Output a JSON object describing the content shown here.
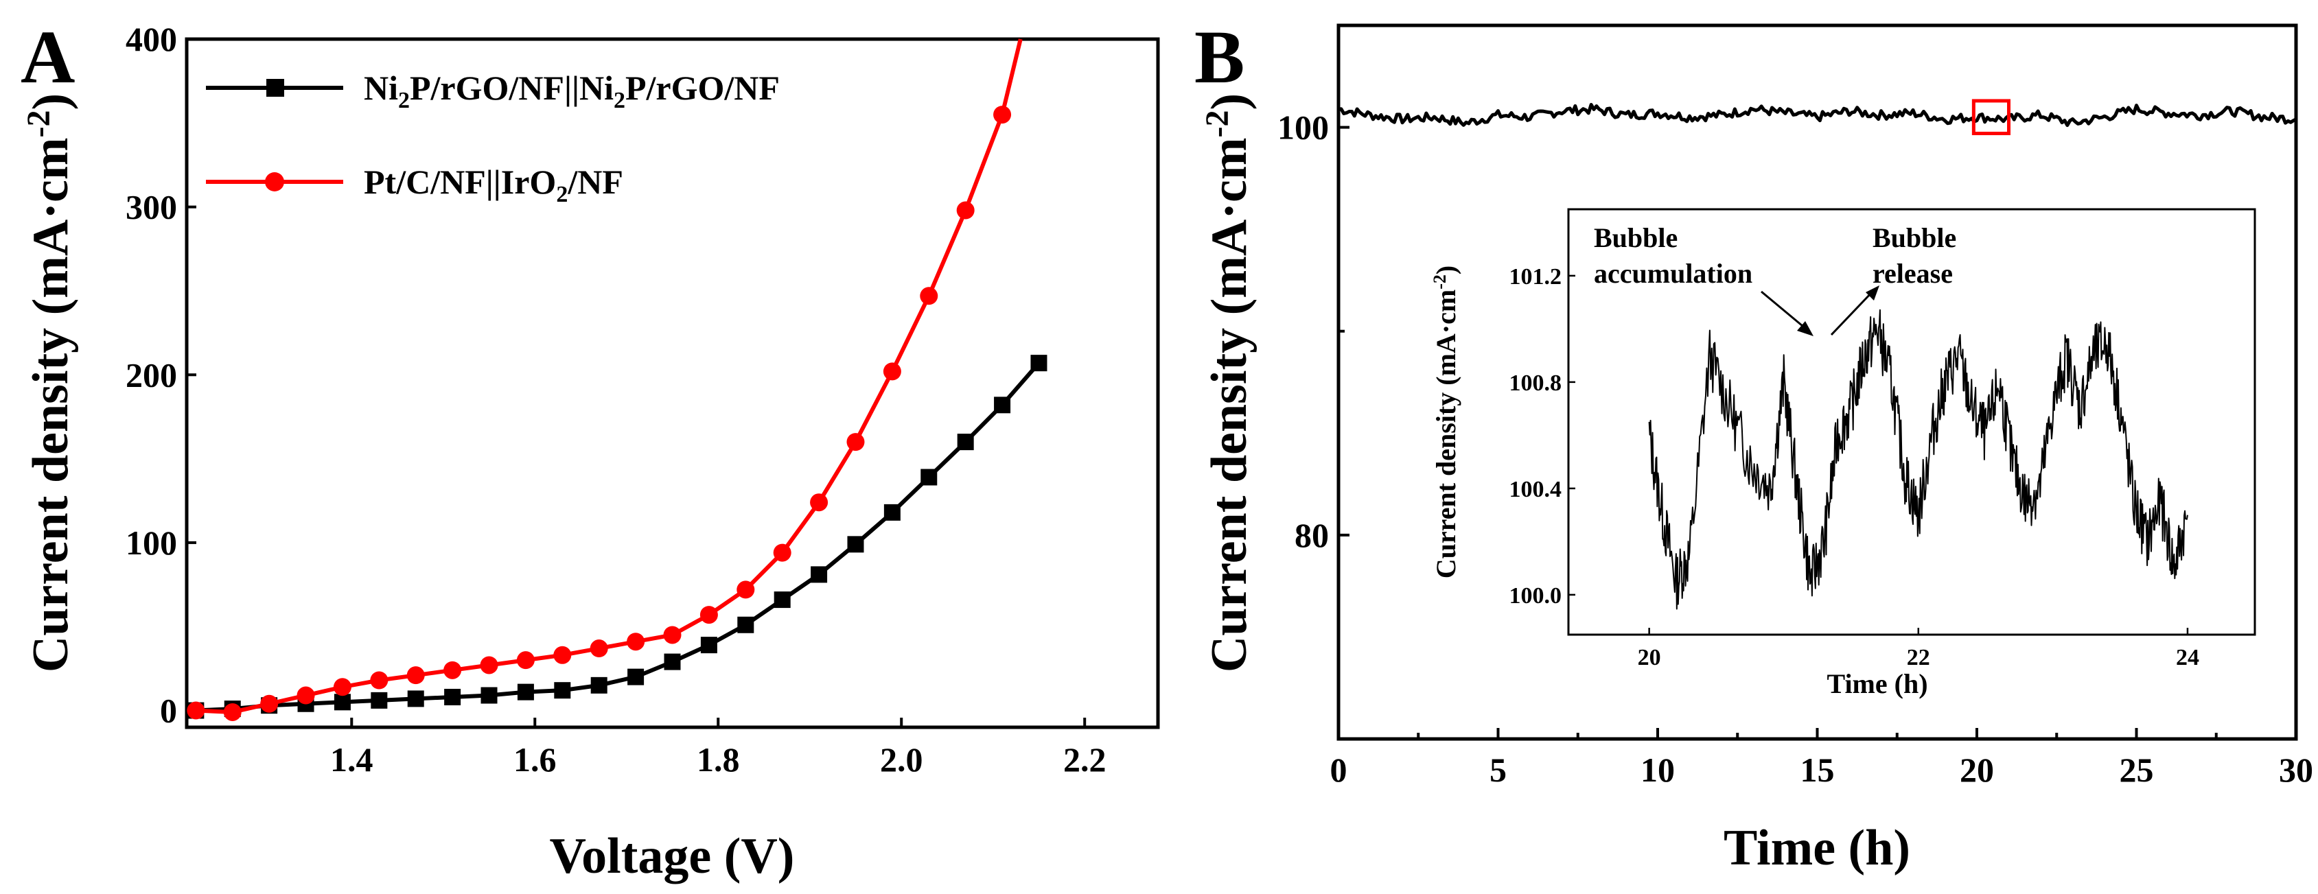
{
  "chart_data": [
    {
      "panel": "A",
      "type": "line",
      "xlabel": "Voltage (V)",
      "ylabel": "Current density (mA·cm⁻²)",
      "xlim": [
        1.22,
        2.28
      ],
      "ylim": [
        -10,
        400
      ],
      "xticks": [
        1.4,
        1.6,
        1.8,
        2.0,
        2.2
      ],
      "xtick_labels": [
        "1.4",
        "1.6",
        "1.8",
        "2.0",
        "2.2"
      ],
      "yticks": [
        0,
        100,
        200,
        300,
        400
      ],
      "ytick_labels": [
        "0",
        "100",
        "200",
        "300",
        "400"
      ],
      "legend": "top-left",
      "series": [
        {
          "name": "Ni2P/rGO/NF||Ni2P/rGO/NF",
          "color": "#000000",
          "marker": "square",
          "x": [
            1.23,
            1.27,
            1.31,
            1.35,
            1.39,
            1.43,
            1.47,
            1.51,
            1.55,
            1.59,
            1.63,
            1.67,
            1.71,
            1.75,
            1.79,
            1.83,
            1.87,
            1.91,
            1.95,
            1.99,
            2.03,
            2.07,
            2.11,
            2.15
          ],
          "y": [
            0,
            1,
            3,
            4,
            5,
            6,
            7,
            8,
            9,
            11,
            12,
            15,
            20,
            29,
            39,
            51,
            66,
            81,
            99,
            118,
            139,
            160,
            182,
            207
          ]
        },
        {
          "name": "Pt/C/NF||IrO2/NF",
          "color": "#ff0000",
          "marker": "circle",
          "x": [
            1.23,
            1.27,
            1.31,
            1.35,
            1.39,
            1.43,
            1.47,
            1.51,
            1.55,
            1.59,
            1.63,
            1.67,
            1.71,
            1.75,
            1.79,
            1.83,
            1.87,
            1.91,
            1.95,
            1.99,
            2.03,
            2.07,
            2.11,
            2.13
          ],
          "y": [
            0,
            -1,
            4,
            9,
            14,
            18,
            21,
            24,
            27,
            30,
            33,
            37,
            41,
            45,
            57,
            72,
            94,
            124,
            160,
            202,
            247,
            298,
            355,
            400
          ]
        }
      ],
      "legend_entries": [
        {
          "label_parts": [
            "Ni",
            "2",
            "P/rGO/NF||Ni",
            "2",
            "P/rGO/NF"
          ],
          "color": "#000000",
          "marker": "square"
        },
        {
          "label_parts": [
            "Pt/C/NF||IrO",
            "2",
            "/NF"
          ],
          "color": "#ff0000",
          "marker": "circle"
        }
      ]
    },
    {
      "panel": "B",
      "type": "line",
      "xlabel": "Time (h)",
      "ylabel": "Current density (mA·cm⁻²)",
      "xlim": [
        0,
        30
      ],
      "ylim": [
        70,
        105
      ],
      "xticks": [
        0,
        5,
        10,
        15,
        20,
        25,
        30
      ],
      "xtick_labels": [
        "0",
        "5",
        "10",
        "15",
        "20",
        "25",
        "30"
      ],
      "yticks": [
        80,
        100
      ],
      "ytick_labels": [
        "80",
        "100"
      ],
      "series": [
        {
          "name": "",
          "color": "#000000",
          "x": [
            0,
            1,
            2,
            3,
            4,
            5,
            6,
            7,
            8,
            9,
            10,
            11,
            12,
            13,
            14,
            15,
            16,
            17,
            18,
            19,
            20,
            21,
            22,
            23,
            24,
            25,
            26,
            27,
            28,
            29,
            30
          ],
          "y": [
            100.9,
            100.6,
            100.4,
            100.5,
            100.2,
            100.6,
            100.5,
            100.8,
            100.9,
            100.6,
            100.7,
            100.5,
            100.6,
            100.9,
            100.7,
            100.5,
            100.8,
            100.6,
            100.7,
            100.4,
            100.5,
            100.4,
            100.6,
            100.2,
            100.5,
            100.9,
            100.7,
            100.6,
            100.8,
            100.5,
            100.4
          ]
        }
      ],
      "highlight_box": {
        "x": [
          19.9,
          21.0
        ],
        "y": [
          99.7,
          101.3
        ],
        "color": "#ff0000"
      },
      "inset": {
        "xlabel": "Time (h)",
        "ylabel": "Current density (mA·cm⁻²)",
        "xlim": [
          19.4,
          24.5
        ],
        "ylim": [
          99.85,
          101.45
        ],
        "xticks": [
          20,
          22,
          24
        ],
        "xtick_labels": [
          "20",
          "22",
          "24"
        ],
        "yticks": [
          100.0,
          100.4,
          100.8,
          101.2
        ],
        "ytick_labels": [
          "100.0",
          "100.4",
          "100.8",
          "101.2"
        ],
        "annotations": [
          {
            "lines": [
              "Bubble",
              "accumulation"
            ],
            "arrow_to": [
              21.7,
              100.95
            ]
          },
          {
            "lines": [
              "Bubble",
              "release"
            ],
            "arrow_to": [
              21.9,
              100.95
            ]
          }
        ],
        "series": [
          {
            "name": "",
            "color": "#000000",
            "x": [
              20.0,
              20.1,
              20.2,
              20.3,
              20.45,
              20.6,
              20.75,
              20.9,
              21.0,
              21.1,
              21.2,
              21.3,
              21.4,
              21.5,
              21.6,
              21.7,
              21.8,
              21.9,
              22.0,
              22.1,
              22.2,
              22.3,
              22.4,
              22.5,
              22.6,
              22.7,
              22.8,
              22.9,
              23.0,
              23.1,
              23.2,
              23.3,
              23.4,
              23.5,
              23.6,
              23.7,
              23.8,
              23.9,
              24.0
            ],
            "y": [
              100.6,
              100.3,
              100.05,
              100.15,
              100.9,
              100.7,
              100.5,
              100.4,
              100.8,
              100.4,
              100.05,
              100.2,
              100.6,
              100.7,
              100.9,
              101.0,
              100.8,
              100.45,
              100.3,
              100.6,
              100.8,
              100.9,
              100.7,
              100.6,
              100.8,
              100.5,
              100.35,
              100.4,
              100.7,
              100.9,
              100.7,
              100.9,
              100.95,
              100.7,
              100.35,
              100.2,
              100.35,
              100.1,
              100.3
            ]
          }
        ]
      }
    }
  ],
  "panel_letters": {
    "a": "A",
    "b": "B"
  }
}
